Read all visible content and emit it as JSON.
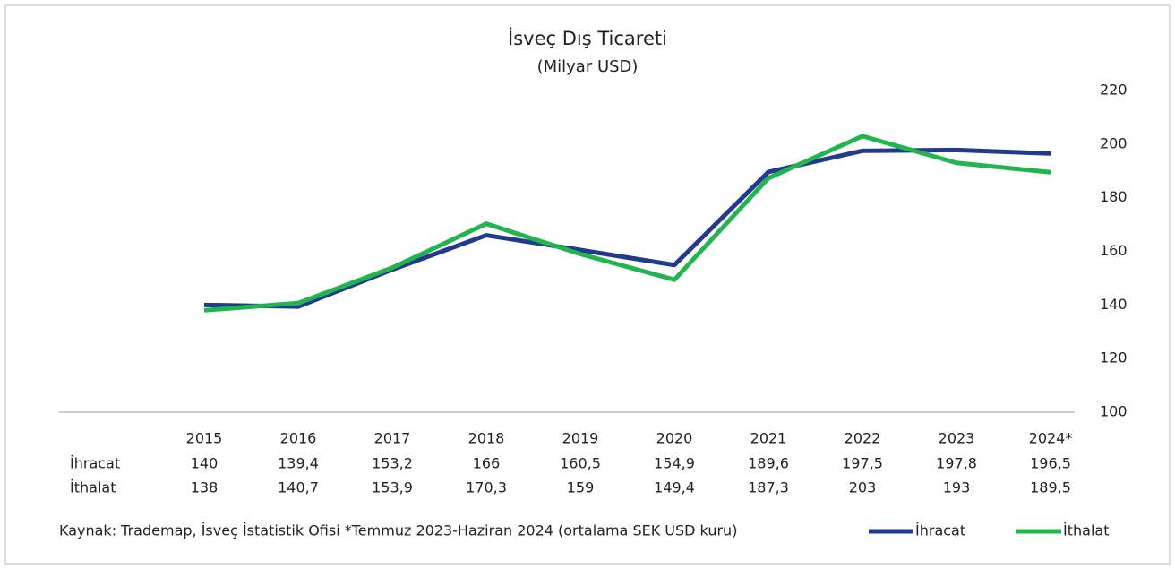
{
  "chart_data": {
    "type": "line",
    "title": "İsveç Dış Ticareti",
    "subtitle": "(Milyar USD)",
    "categories": [
      "2015",
      "2016",
      "2017",
      "2018",
      "2019",
      "2020",
      "2021",
      "2022",
      "2023",
      "2024*"
    ],
    "series": [
      {
        "name": "İhracat",
        "color": "#223a8e",
        "values": [
          140,
          139.4,
          153.2,
          166,
          160.5,
          154.9,
          189.6,
          197.5,
          197.8,
          196.5
        ],
        "value_labels": [
          "140",
          "139,4",
          "153,2",
          "166",
          "160,5",
          "154,9",
          "189,6",
          "197,5",
          "197,8",
          "196,5"
        ]
      },
      {
        "name": "İthalat",
        "color": "#22b44e",
        "values": [
          138,
          140.7,
          153.9,
          170.3,
          159,
          149.4,
          187.3,
          203,
          193,
          189.5
        ],
        "value_labels": [
          "138",
          "140,7",
          "153,9",
          "170,3",
          "159",
          "149,4",
          "187,3",
          "203",
          "193",
          "189,5"
        ]
      }
    ],
    "ylim": [
      100,
      220
    ],
    "yticks": [
      100,
      120,
      140,
      160,
      180,
      200,
      220
    ],
    "y_axis_side": "right",
    "grid": false,
    "legend": "bottom-right",
    "source": "Kaynak: Trademap, İsveç İstatistik Ofisi *Temmuz 2023-Haziran 2024 (ortalama SEK USD kuru)"
  }
}
